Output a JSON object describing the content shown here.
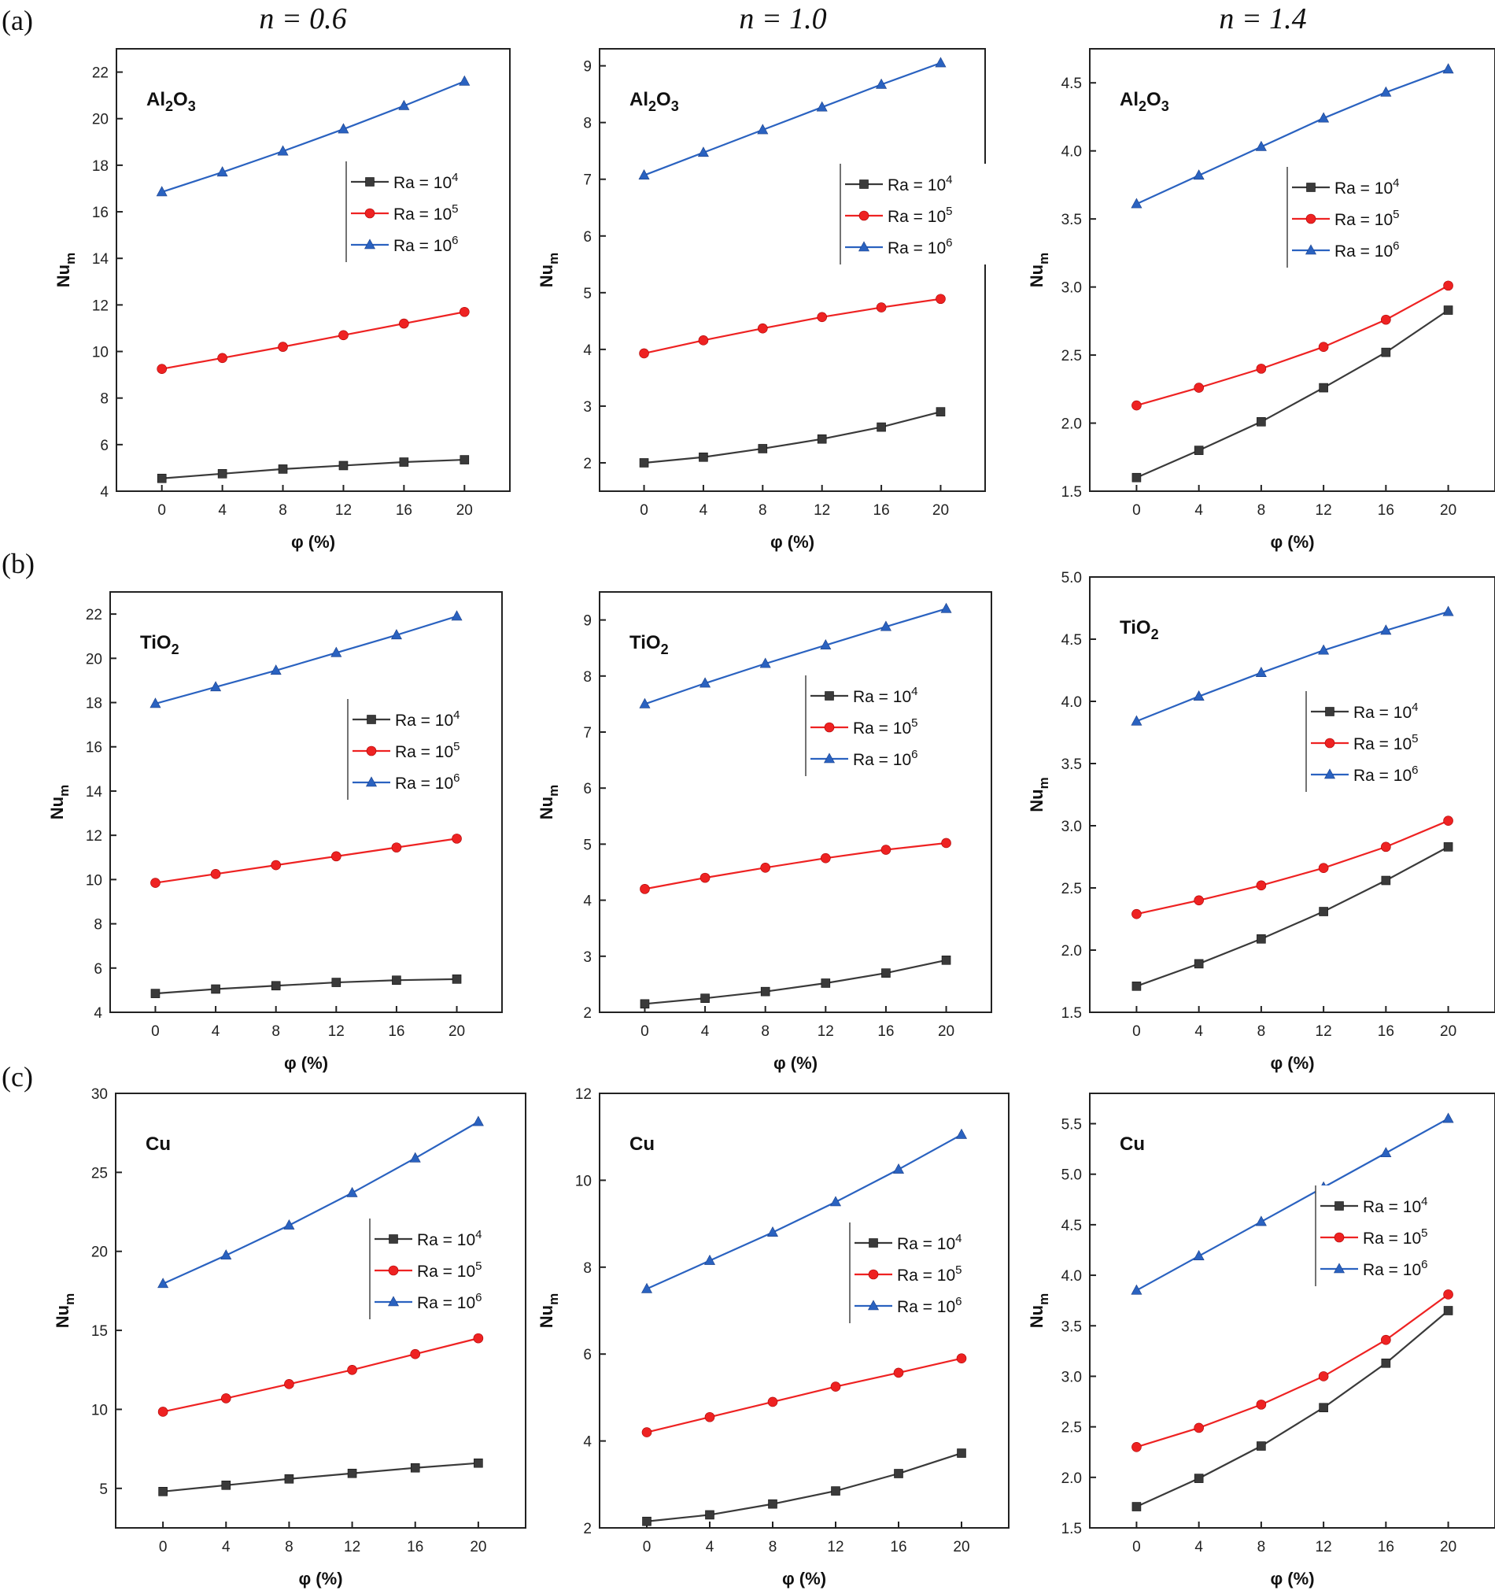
{
  "figure": {
    "row_labels": [
      "(a)",
      "(b)",
      "(c)"
    ],
    "column_headers": [
      "n = 0.6",
      "n = 1.0",
      "n = 1.4"
    ],
    "colors": {
      "ra4": "#3a3a3a",
      "ra5": "#ee2222",
      "ra6": "#2a62c0"
    },
    "legend_labels": [
      {
        "prefix": "Ra = 10",
        "exp": "4"
      },
      {
        "prefix": "Ra = 10",
        "exp": "5"
      },
      {
        "prefix": "Ra = 10",
        "exp": "6"
      }
    ]
  },
  "chart_data": [
    {
      "id": "a-n06",
      "type": "line",
      "title": "Al2O3",
      "material": {
        "base": "Al",
        "sub1": "2",
        "mid": "O",
        "sub2": "3"
      },
      "xlabel": "φ (%)",
      "ylabel": "Nu_m",
      "x": [
        0,
        4,
        8,
        12,
        16,
        20
      ],
      "xlim": [
        -3,
        23
      ],
      "xticks": [
        0,
        4,
        8,
        12,
        16,
        20
      ],
      "ylim": [
        4,
        23
      ],
      "yticks": [
        4,
        6,
        8,
        10,
        12,
        14,
        16,
        18,
        20,
        22
      ],
      "legend_position": "upper-right",
      "series": [
        {
          "name": "Ra = 10^4",
          "values": [
            4.55,
            4.75,
            4.95,
            5.1,
            5.25,
            5.35
          ]
        },
        {
          "name": "Ra = 10^5",
          "values": [
            9.25,
            9.72,
            10.2,
            10.7,
            11.2,
            11.7
          ]
        },
        {
          "name": "Ra = 10^6",
          "values": [
            16.85,
            17.7,
            18.6,
            19.55,
            20.55,
            21.6
          ]
        }
      ]
    },
    {
      "id": "a-n10",
      "type": "line",
      "title": "Al2O3",
      "material": {
        "base": "Al",
        "sub1": "2",
        "mid": "O",
        "sub2": "3"
      },
      "xlabel": "φ (%)",
      "ylabel": "Nu_m",
      "x": [
        0,
        4,
        8,
        12,
        16,
        20
      ],
      "xlim": [
        -3,
        23
      ],
      "xticks": [
        0,
        4,
        8,
        12,
        16,
        20
      ],
      "ylim": [
        1.5,
        9.3
      ],
      "yticks": [
        2,
        3,
        4,
        5,
        6,
        7,
        8,
        9
      ],
      "legend_position": "upper-right",
      "series": [
        {
          "name": "Ra = 10^4",
          "values": [
            2.0,
            2.1,
            2.25,
            2.42,
            2.63,
            2.9
          ]
        },
        {
          "name": "Ra = 10^5",
          "values": [
            3.93,
            4.16,
            4.37,
            4.57,
            4.74,
            4.89
          ]
        },
        {
          "name": "Ra = 10^6",
          "values": [
            7.07,
            7.47,
            7.87,
            8.27,
            8.67,
            9.05
          ]
        }
      ]
    },
    {
      "id": "a-n14",
      "type": "line",
      "title": "Al2O3",
      "material": {
        "base": "Al",
        "sub1": "2",
        "mid": "O",
        "sub2": "3"
      },
      "xlabel": "φ (%)",
      "ylabel": "Nu_m",
      "x": [
        0,
        4,
        8,
        12,
        16,
        20
      ],
      "xlim": [
        -3,
        23
      ],
      "xticks": [
        0,
        4,
        8,
        12,
        16,
        20
      ],
      "ylim": [
        1.5,
        4.75
      ],
      "yticks": [
        1.5,
        2.0,
        2.5,
        3.0,
        3.5,
        4.0,
        4.5
      ],
      "legend_position": "upper-right",
      "series": [
        {
          "name": "Ra = 10^4",
          "values": [
            1.6,
            1.8,
            2.01,
            2.26,
            2.52,
            2.83
          ]
        },
        {
          "name": "Ra = 10^5",
          "values": [
            2.13,
            2.26,
            2.4,
            2.56,
            2.76,
            3.01
          ]
        },
        {
          "name": "Ra = 10^6",
          "values": [
            3.61,
            3.82,
            4.03,
            4.24,
            4.43,
            4.6
          ]
        }
      ]
    },
    {
      "id": "b-n06",
      "type": "line",
      "title": "TiO2",
      "material": {
        "base": "TiO",
        "sub1": "2",
        "mid": "",
        "sub2": ""
      },
      "xlabel": "φ (%)",
      "ylabel": "Nu_m",
      "x": [
        0,
        4,
        8,
        12,
        16,
        20
      ],
      "xlim": [
        -3,
        23
      ],
      "xticks": [
        0,
        4,
        8,
        12,
        16,
        20
      ],
      "ylim": [
        4,
        23
      ],
      "yticks": [
        4,
        6,
        8,
        10,
        12,
        14,
        16,
        18,
        20,
        22
      ],
      "legend_position": "right",
      "series": [
        {
          "name": "Ra = 10^4",
          "values": [
            4.85,
            5.05,
            5.2,
            5.35,
            5.45,
            5.5
          ]
        },
        {
          "name": "Ra = 10^5",
          "values": [
            9.85,
            10.25,
            10.65,
            11.05,
            11.45,
            11.85
          ]
        },
        {
          "name": "Ra = 10^6",
          "values": [
            17.95,
            18.7,
            19.45,
            20.25,
            21.05,
            21.9
          ]
        }
      ]
    },
    {
      "id": "b-n10",
      "type": "line",
      "title": "TiO2",
      "material": {
        "base": "TiO",
        "sub1": "2",
        "mid": "",
        "sub2": ""
      },
      "xlabel": "φ (%)",
      "ylabel": "Nu_m",
      "x": [
        0,
        4,
        8,
        12,
        16,
        20
      ],
      "xlim": [
        -3,
        23
      ],
      "xticks": [
        0,
        4,
        8,
        12,
        16,
        20
      ],
      "ylim": [
        2,
        9.5
      ],
      "yticks": [
        2,
        3,
        4,
        5,
        6,
        7,
        8,
        9
      ],
      "legend_position": "right",
      "series": [
        {
          "name": "Ra = 10^4",
          "values": [
            2.15,
            2.25,
            2.37,
            2.52,
            2.7,
            2.93
          ]
        },
        {
          "name": "Ra = 10^5",
          "values": [
            4.2,
            4.4,
            4.58,
            4.75,
            4.9,
            5.02
          ]
        },
        {
          "name": "Ra = 10^6",
          "values": [
            7.5,
            7.87,
            8.22,
            8.55,
            8.88,
            9.2
          ]
        }
      ]
    },
    {
      "id": "b-n14",
      "type": "line",
      "title": "TiO2",
      "material": {
        "base": "TiO",
        "sub1": "2",
        "mid": "",
        "sub2": ""
      },
      "xlabel": "φ (%)",
      "ylabel": "Nu_m",
      "x": [
        0,
        4,
        8,
        12,
        16,
        20
      ],
      "xlim": [
        -3,
        23
      ],
      "xticks": [
        0,
        4,
        8,
        12,
        16,
        20
      ],
      "ylim": [
        1.5,
        5.0
      ],
      "yticks": [
        1.5,
        2.0,
        2.5,
        3.0,
        3.5,
        4.0,
        4.5,
        5.0
      ],
      "legend_position": "right",
      "series": [
        {
          "name": "Ra = 10^4",
          "values": [
            1.71,
            1.89,
            2.09,
            2.31,
            2.56,
            2.83
          ]
        },
        {
          "name": "Ra = 10^5",
          "values": [
            2.29,
            2.4,
            2.52,
            2.66,
            2.83,
            3.04
          ]
        },
        {
          "name": "Ra = 10^6",
          "values": [
            3.84,
            4.04,
            4.23,
            4.41,
            4.57,
            4.72
          ]
        }
      ]
    },
    {
      "id": "c-n06",
      "type": "line",
      "title": "Cu",
      "material": {
        "base": "Cu",
        "sub1": "",
        "mid": "",
        "sub2": ""
      },
      "xlabel": "φ (%)",
      "ylabel": "Nu_m",
      "x": [
        0,
        4,
        8,
        12,
        16,
        20
      ],
      "xlim": [
        -3,
        23
      ],
      "xticks": [
        0,
        4,
        8,
        12,
        16,
        20
      ],
      "ylim": [
        2.5,
        30
      ],
      "yticks": [
        5,
        10,
        15,
        20,
        25,
        30
      ],
      "legend_position": "right",
      "series": [
        {
          "name": "Ra = 10^4",
          "values": [
            4.8,
            5.2,
            5.6,
            5.95,
            6.3,
            6.6
          ]
        },
        {
          "name": "Ra = 10^5",
          "values": [
            9.85,
            10.7,
            11.6,
            12.5,
            13.5,
            14.5
          ]
        },
        {
          "name": "Ra = 10^6",
          "values": [
            17.95,
            19.75,
            21.65,
            23.7,
            25.9,
            28.2
          ]
        }
      ]
    },
    {
      "id": "c-n10",
      "type": "line",
      "title": "Cu",
      "material": {
        "base": "Cu",
        "sub1": "",
        "mid": "",
        "sub2": ""
      },
      "xlabel": "φ (%)",
      "ylabel": "Nu_m",
      "x": [
        0,
        4,
        8,
        12,
        16,
        20
      ],
      "xlim": [
        -3,
        23
      ],
      "xticks": [
        0,
        4,
        8,
        12,
        16,
        20
      ],
      "ylim": [
        2,
        12
      ],
      "yticks": [
        2,
        4,
        6,
        8,
        10,
        12
      ],
      "legend_position": "right",
      "series": [
        {
          "name": "Ra = 10^4",
          "values": [
            2.15,
            2.3,
            2.55,
            2.85,
            3.25,
            3.72
          ]
        },
        {
          "name": "Ra = 10^5",
          "values": [
            4.2,
            4.55,
            4.9,
            5.25,
            5.57,
            5.9
          ]
        },
        {
          "name": "Ra = 10^6",
          "values": [
            7.5,
            8.15,
            8.8,
            9.5,
            10.25,
            11.05
          ]
        }
      ]
    },
    {
      "id": "c-n14",
      "type": "line",
      "title": "Cu",
      "material": {
        "base": "Cu",
        "sub1": "",
        "mid": "",
        "sub2": ""
      },
      "xlabel": "φ (%)",
      "ylabel": "Nu_m",
      "x": [
        0,
        4,
        8,
        12,
        16,
        20
      ],
      "xlim": [
        -3,
        23
      ],
      "xticks": [
        0,
        4,
        8,
        12,
        16,
        20
      ],
      "ylim": [
        1.5,
        5.8
      ],
      "yticks": [
        1.5,
        2.0,
        2.5,
        3.0,
        3.5,
        4.0,
        4.5,
        5.0,
        5.5
      ],
      "legend_position": "right",
      "series": [
        {
          "name": "Ra = 10^4",
          "values": [
            1.71,
            1.99,
            2.31,
            2.69,
            3.13,
            3.65
          ]
        },
        {
          "name": "Ra = 10^5",
          "values": [
            2.3,
            2.49,
            2.72,
            3.0,
            3.36,
            3.81
          ]
        },
        {
          "name": "Ra = 10^6",
          "values": [
            3.85,
            4.19,
            4.53,
            4.87,
            5.21,
            5.55
          ]
        }
      ]
    }
  ]
}
